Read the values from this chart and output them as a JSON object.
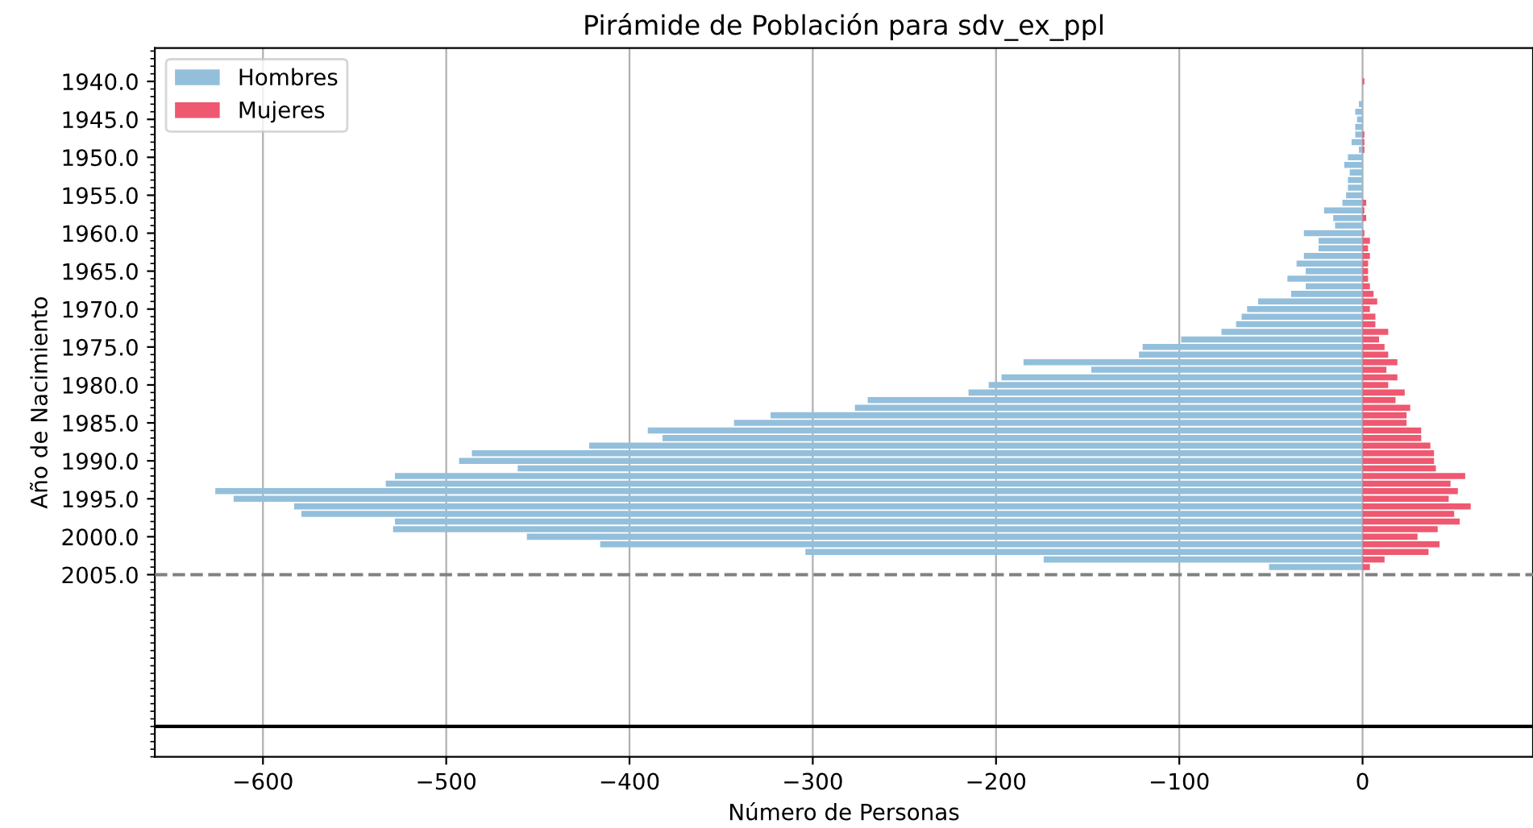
{
  "chart_data": {
    "type": "bar",
    "orientation": "horizontal",
    "title": "Pirámide de Población para sdv_ex_ppl",
    "xlabel": "Número de Personas",
    "ylabel": "Año de Nacimiento",
    "x": [
      1940,
      1941,
      1942,
      1943,
      1944,
      1945,
      1946,
      1947,
      1948,
      1949,
      1950,
      1951,
      1952,
      1953,
      1954,
      1955,
      1956,
      1957,
      1958,
      1959,
      1960,
      1961,
      1962,
      1963,
      1964,
      1965,
      1966,
      1967,
      1968,
      1969,
      1970,
      1971,
      1972,
      1973,
      1974,
      1975,
      1976,
      1977,
      1978,
      1979,
      1980,
      1981,
      1982,
      1983,
      1984,
      1985,
      1986,
      1987,
      1988,
      1989,
      1990,
      1991,
      1992,
      1993,
      1994,
      1995,
      1996,
      1997,
      1998,
      1999,
      2000,
      2001,
      2002,
      2003,
      2004
    ],
    "series": [
      {
        "name": "Hombres",
        "color": "#93bfdb",
        "values": [
          0,
          0,
          0,
          -2,
          -4,
          -3,
          -4,
          -4,
          -6,
          -2,
          -8,
          -10,
          -7,
          -8,
          -8,
          -9,
          -11,
          -21,
          -16,
          -15,
          -32,
          -24,
          -24,
          -32,
          -36,
          -31,
          -41,
          -31,
          -39,
          -57,
          -63,
          -66,
          -69,
          -77,
          -99,
          -120,
          -122,
          -185,
          -148,
          -197,
          -204,
          -215,
          -270,
          -277,
          -323,
          -343,
          -390,
          -382,
          -422,
          -486,
          -493,
          -461,
          -528,
          -533,
          -626,
          -616,
          -583,
          -579,
          -528,
          -529,
          -456,
          -416,
          -304,
          -174,
          -51
        ]
      },
      {
        "name": "Mujeres",
        "color": "#ee5870",
        "values": [
          1,
          0,
          0,
          0,
          0,
          0,
          0,
          1,
          1,
          1,
          0,
          0,
          0,
          0,
          0,
          0,
          2,
          1,
          2,
          0,
          1,
          4,
          3,
          4,
          3,
          3,
          3,
          4,
          6,
          8,
          4,
          7,
          7,
          14,
          9,
          12,
          14,
          19,
          13,
          19,
          14,
          23,
          18,
          26,
          24,
          24,
          32,
          32,
          37,
          39,
          39,
          40,
          56,
          48,
          52,
          47,
          59,
          50,
          53,
          41,
          30,
          42,
          36,
          12,
          4
        ]
      }
    ],
    "xlim": [
      -659,
      93
    ],
    "xticks": [
      -600,
      -500,
      -400,
      -300,
      -200,
      -100,
      0
    ],
    "ylim": [
      2029,
      1935.6
    ],
    "yticks": [
      {
        "value": 1940,
        "label": "1940.0"
      },
      {
        "value": 1945,
        "label": "1945.0"
      },
      {
        "value": 1950,
        "label": "1950.0"
      },
      {
        "value": 1955,
        "label": "1955.0"
      },
      {
        "value": 1960,
        "label": "1960.0"
      },
      {
        "value": 1965,
        "label": "1965.0"
      },
      {
        "value": 1970,
        "label": "1970.0"
      },
      {
        "value": 1975,
        "label": "1975.0"
      },
      {
        "value": 1980,
        "label": "1980.0"
      },
      {
        "value": 1985,
        "label": "1985.0"
      },
      {
        "value": 1990,
        "label": "1990.0"
      },
      {
        "value": 1995,
        "label": "1995.0"
      },
      {
        "value": 2000,
        "label": "2000.0"
      },
      {
        "value": 2005,
        "label": "2005.0"
      }
    ],
    "ref_lines": [
      {
        "axis": "y",
        "value": 2005,
        "color": "#808080",
        "line_style": "dashed"
      },
      {
        "axis": "y",
        "value": 2025,
        "color": "#000000",
        "line_style": "solid"
      }
    ],
    "grid": "x",
    "legend": "top left",
    "stacked": true
  }
}
